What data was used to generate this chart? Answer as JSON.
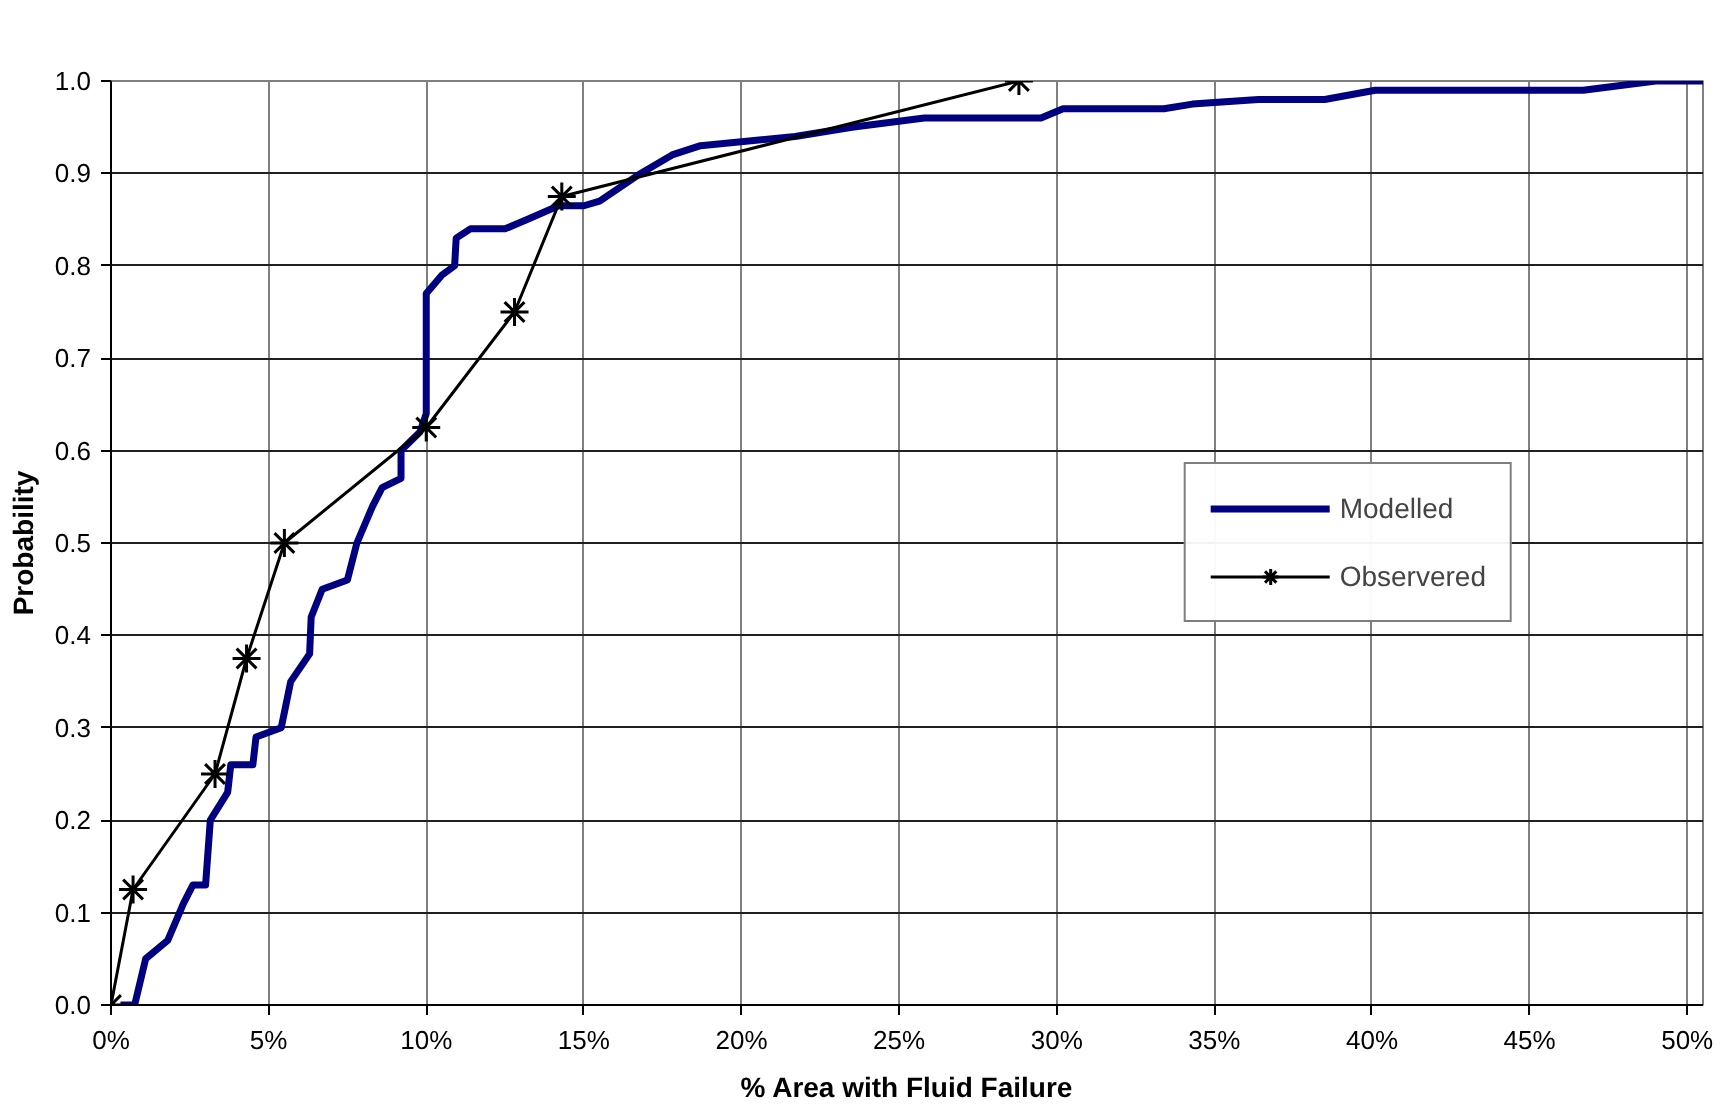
{
  "chart_data": {
    "type": "line",
    "xlabel": "% Area with Fluid Failure",
    "ylabel": "Probability",
    "xlim": [
      0,
      50.5
    ],
    "ylim": [
      0,
      1.0
    ],
    "xticks": [
      {
        "value": 0,
        "label": "0%"
      },
      {
        "value": 5,
        "label": "5%"
      },
      {
        "value": 10,
        "label": "10%"
      },
      {
        "value": 15,
        "label": "15%"
      },
      {
        "value": 20,
        "label": "20%"
      },
      {
        "value": 25,
        "label": "25%"
      },
      {
        "value": 30,
        "label": "30%"
      },
      {
        "value": 35,
        "label": "35%"
      },
      {
        "value": 40,
        "label": "40%"
      },
      {
        "value": 45,
        "label": "45%"
      },
      {
        "value": 50,
        "label": "50%"
      }
    ],
    "yticks": [
      {
        "value": 0,
        "label": "0.0"
      },
      {
        "value": 0.1,
        "label": "0.1"
      },
      {
        "value": 0.2,
        "label": "0.2"
      },
      {
        "value": 0.3,
        "label": "0.3"
      },
      {
        "value": 0.4,
        "label": "0.4"
      },
      {
        "value": 0.5,
        "label": "0.5"
      },
      {
        "value": 0.6,
        "label": "0.6"
      },
      {
        "value": 0.7,
        "label": "0.7"
      },
      {
        "value": 0.8,
        "label": "0.8"
      },
      {
        "value": 0.9,
        "label": "0.9"
      },
      {
        "value": 1.0,
        "label": "1.0"
      }
    ],
    "grid": true,
    "legend": "right",
    "series": [
      {
        "name": "Modelled",
        "color": "#000080",
        "marker": "none",
        "x": [
          0.3,
          0.75,
          1.1,
          1.8,
          2.3,
          2.6,
          3.0,
          3.15,
          3.7,
          3.8,
          4.5,
          4.6,
          5.4,
          5.7,
          6.3,
          6.35,
          6.7,
          7.5,
          7.8,
          8.3,
          8.6,
          9.2,
          9.2,
          9.8,
          10.0,
          10.0,
          10.5,
          10.9,
          10.95,
          11.4,
          12.5,
          13.2,
          14.2,
          15.0,
          15.5,
          16.8,
          17.8,
          18.7,
          21.7,
          23.5,
          25.8,
          29.5,
          30.2,
          33.4,
          34.3,
          36.4,
          38.5,
          40.1,
          46.7,
          49.0,
          50.5
        ],
        "values": [
          0,
          0.0,
          0.05,
          0.07,
          0.11,
          0.13,
          0.13,
          0.2,
          0.23,
          0.26,
          0.26,
          0.29,
          0.3,
          0.35,
          0.38,
          0.42,
          0.45,
          0.46,
          0.5,
          0.54,
          0.56,
          0.57,
          0.6,
          0.62,
          0.64,
          0.77,
          0.79,
          0.8,
          0.83,
          0.84,
          0.84,
          0.85,
          0.865,
          0.865,
          0.87,
          0.9,
          0.92,
          0.93,
          0.94,
          0.95,
          0.96,
          0.96,
          0.97,
          0.97,
          0.975,
          0.98,
          0.98,
          0.99,
          0.99,
          1.0,
          1.0
        ]
      },
      {
        "name": "Observered",
        "color": "#000000",
        "marker": "cross",
        "x": [
          0,
          0.7,
          3.3,
          4.3,
          5.5,
          10.0,
          12.8,
          14.3,
          28.8
        ],
        "values": [
          0,
          0.125,
          0.25,
          0.375,
          0.5,
          0.625,
          0.75,
          0.875,
          1.0
        ]
      }
    ]
  }
}
